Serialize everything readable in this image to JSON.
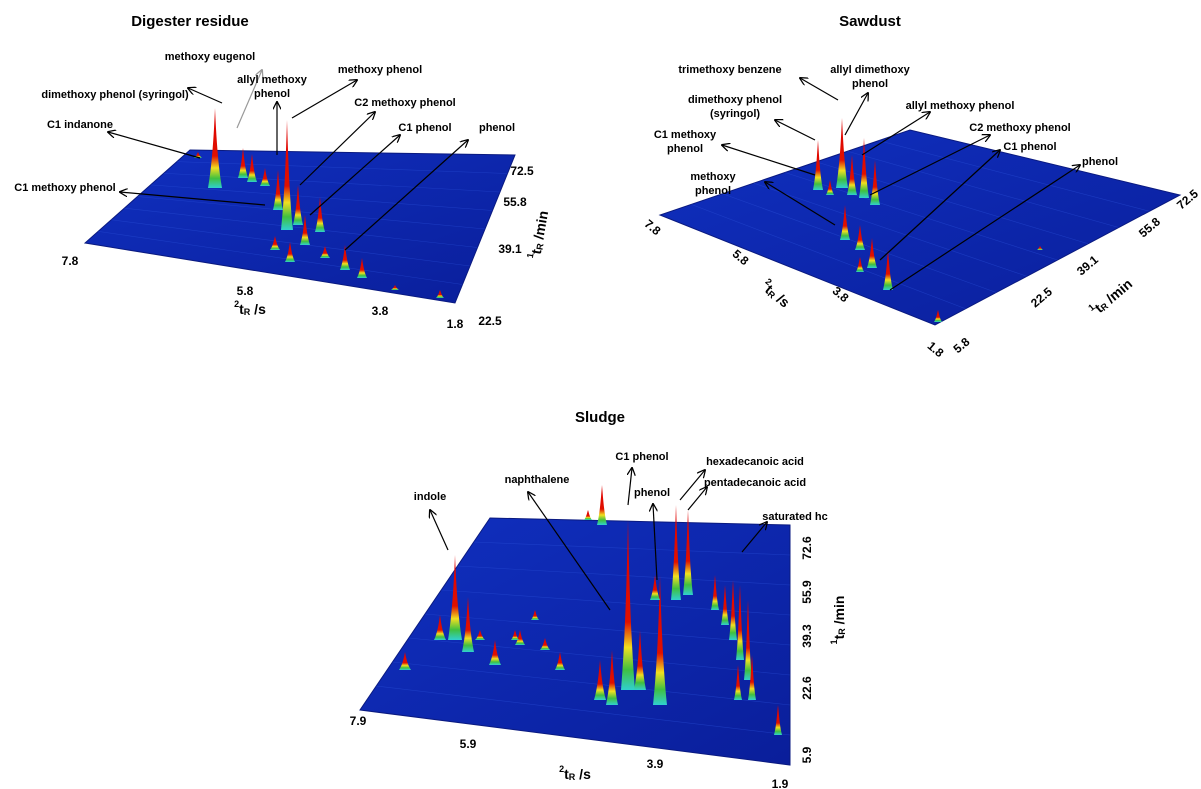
{
  "panels": [
    {
      "title": "Digester residue",
      "x_axis_label": {
        "sup": "2",
        "base": "t",
        "sub": "R",
        "unit": " /s"
      },
      "y_axis_label": {
        "sup": "1",
        "base": "t",
        "sub": "R",
        "unit": " /min"
      },
      "x_ticks": [
        "7.8",
        "5.8",
        "3.8",
        "1.8"
      ],
      "y_ticks": [
        "22.5",
        "39.1",
        "55.8",
        "72.5"
      ],
      "annotations": [
        [
          "methoxy eugenol"
        ],
        [
          "dimethoxy phenol (syringol)"
        ],
        [
          "allyl methoxy",
          "phenol"
        ],
        [
          "methoxy phenol"
        ],
        [
          "C2 methoxy phenol"
        ],
        [
          "C1 phenol"
        ],
        [
          "phenol"
        ],
        [
          "C1 indanone"
        ],
        [
          "C1 methoxy phenol"
        ]
      ]
    },
    {
      "title": "Sawdust",
      "x_axis_label": {
        "sup": "2",
        "base": "t",
        "sub": "R",
        "unit": " /s"
      },
      "y_axis_label": {
        "sup": "1",
        "base": "t",
        "sub": "R",
        "unit": " /min"
      },
      "x_ticks": [
        "7.8",
        "5.8",
        "3.8",
        "1.8"
      ],
      "y_ticks": [
        "5.8",
        "22.5",
        "39.1",
        "55.8",
        "72.5"
      ],
      "annotations": [
        [
          "trimethoxy benzene"
        ],
        [
          "allyl dimethoxy",
          "phenol"
        ],
        [
          "dimethoxy phenol",
          "(syringol)"
        ],
        [
          "allyl methoxy phenol"
        ],
        [
          "C1 methoxy",
          "phenol"
        ],
        [
          "C2 methoxy phenol"
        ],
        [
          "methoxy",
          "phenol"
        ],
        [
          "C1 phenol"
        ],
        [
          "phenol"
        ]
      ]
    },
    {
      "title": "Sludge",
      "x_axis_label": {
        "sup": "2",
        "base": "t",
        "sub": "R",
        "unit": " /s"
      },
      "y_axis_label": {
        "sup": "1",
        "base": "t",
        "sub": "R",
        "unit": " /min"
      },
      "x_ticks": [
        "7.9",
        "5.9",
        "3.9",
        "1.9"
      ],
      "y_ticks": [
        "5.9",
        "22.6",
        "39.3",
        "55.9",
        "72.6"
      ],
      "annotations": [
        [
          "indole"
        ],
        [
          "naphthalene"
        ],
        [
          "C1 phenol"
        ],
        [
          "phenol"
        ],
        [
          "hexadecanoic acid"
        ],
        [
          "pentadecanoic acid"
        ],
        [
          "saturated hc"
        ]
      ]
    }
  ]
}
